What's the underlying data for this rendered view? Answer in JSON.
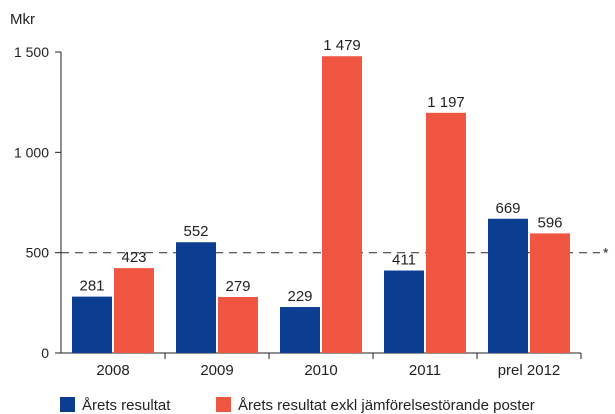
{
  "chart_data": {
    "type": "bar",
    "ylabel": "Mkr",
    "categories": [
      "2008",
      "2009",
      "2010",
      "2011",
      "prel 2012"
    ],
    "series": [
      {
        "name": "Årets resultat",
        "color": "#0b3d91",
        "values": [
          281,
          552,
          229,
          411,
          669
        ],
        "labels": [
          "281",
          "552",
          "229",
          "411",
          "669"
        ]
      },
      {
        "name": "Årets resultat exkl jämförelsestörande poster",
        "color": "#f05541",
        "values": [
          423,
          279,
          1479,
          1197,
          596
        ],
        "labels": [
          "423",
          "279",
          "1 479",
          "1 197",
          "596"
        ]
      }
    ],
    "ylim": [
      0,
      1500
    ],
    "yticks": [
      0,
      500,
      1000,
      1500
    ],
    "ytick_labels": [
      "0",
      "500",
      "1 000",
      "1 500"
    ],
    "reference_line": {
      "value": 500,
      "style": "dashed",
      "label": "*"
    },
    "grid": false,
    "legend": "bottom-left"
  }
}
